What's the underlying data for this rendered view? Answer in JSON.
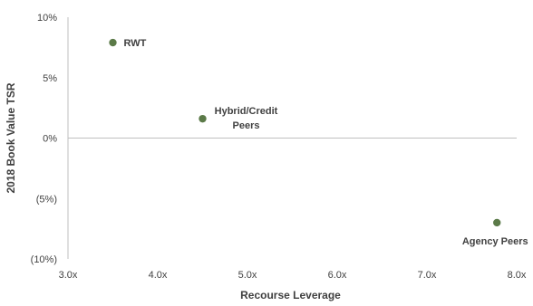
{
  "chart_data": {
    "type": "scatter",
    "title": "",
    "xlabel": "Recourse Leverage",
    "ylabel": "2018 Book Value TSR",
    "xlim": [
      3.0,
      8.0
    ],
    "ylim": [
      -10,
      10
    ],
    "x_ticks": [
      3.0,
      4.0,
      5.0,
      6.0,
      7.0,
      8.0
    ],
    "x_tick_labels": [
      "3.0x",
      "4.0x",
      "5.0x",
      "6.0x",
      "7.0x",
      "8.0x"
    ],
    "y_ticks": [
      10,
      5,
      0,
      -5,
      -10
    ],
    "y_tick_labels": [
      "10%",
      "5%",
      "0%",
      "(5%)",
      "(10%)"
    ],
    "grid": false,
    "marker_color": "#5b7a48",
    "points": [
      {
        "label_lines": [
          "RWT"
        ],
        "x": 3.5,
        "y": 7.9,
        "label_position": "right"
      },
      {
        "label_lines": [
          "Hybrid/Credit",
          "Peers"
        ],
        "x": 4.5,
        "y": 1.6,
        "label_position": "right-above"
      },
      {
        "label_lines": [
          "Agency Peers"
        ],
        "x": 7.78,
        "y": -7.0,
        "label_position": "below"
      }
    ]
  }
}
